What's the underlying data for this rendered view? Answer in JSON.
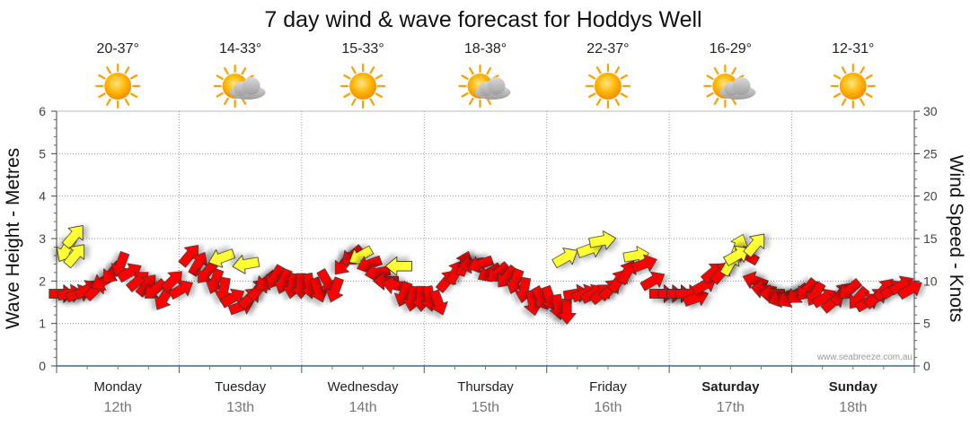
{
  "chart_data": {
    "type": "line",
    "title": "7 day wind & wave forecast for Hoddys Well",
    "ylabel_left": "Wave Height - Metres",
    "ylabel_right": "Wind Speed - Knots",
    "left_axis": {
      "min": 0,
      "max": 6,
      "ticks": [
        "0",
        "1",
        "2",
        "3",
        "4",
        "5",
        "6"
      ]
    },
    "right_axis": {
      "min": 0,
      "max": 30,
      "ticks": [
        "0",
        "5",
        "10",
        "15",
        "20",
        "25",
        "30"
      ]
    },
    "grid": true,
    "days": [
      {
        "day": "Monday",
        "date": "12th",
        "temp": "20-37°",
        "icon": "sun-icon",
        "bold": false
      },
      {
        "day": "Tuesday",
        "date": "13th",
        "temp": "14-33°",
        "icon": "sun-cloud-icon",
        "bold": false
      },
      {
        "day": "Wednesday",
        "date": "14th",
        "temp": "15-33°",
        "icon": "sun-icon",
        "bold": false
      },
      {
        "day": "Thursday",
        "date": "15th",
        "temp": "18-38°",
        "icon": "sun-cloud-icon",
        "bold": false
      },
      {
        "day": "Friday",
        "date": "16th",
        "temp": "22-37°",
        "icon": "sun-icon",
        "bold": false
      },
      {
        "day": "Saturday",
        "date": "17th",
        "temp": "16-29°",
        "icon": "sun-cloud-icon",
        "bold": true
      },
      {
        "day": "Sunday",
        "date": "18th",
        "temp": "12-31°",
        "icon": "sun-icon",
        "bold": true
      }
    ],
    "wind_speed_knots": [
      8.5,
      8.5,
      8.5,
      9,
      9,
      10,
      11,
      12,
      11,
      10,
      9.5,
      9,
      8,
      10,
      9,
      13,
      12,
      11,
      10,
      9,
      8,
      7,
      8,
      9,
      10,
      10.5,
      10,
      9.5,
      9.5,
      9.5,
      9,
      10,
      9,
      12,
      13,
      13,
      12,
      11,
      10,
      9.5,
      8.5,
      8,
      8,
      8,
      7.5,
      10,
      11,
      12,
      12,
      12,
      11,
      11,
      10.5,
      10,
      9,
      7.5,
      8,
      8,
      7,
      6.5,
      8.5,
      8.5,
      8.5,
      8.5,
      9,
      10,
      11,
      13,
      12,
      10,
      8.5,
      8.5,
      8.5,
      8.5,
      8,
      9.5,
      11,
      11,
      12,
      14,
      13,
      10,
      9,
      8.5,
      8,
      8,
      8.5,
      9,
      8.5,
      8,
      7.5,
      8.5,
      9,
      8,
      7.5,
      8,
      9,
      9,
      9.5,
      9
    ],
    "wind_colors": [
      "red",
      "red",
      "red",
      "red",
      "red",
      "red",
      "red",
      "red",
      "red",
      "red",
      "red",
      "red",
      "red",
      "red",
      "red",
      "red",
      "red",
      "red",
      "red",
      "red",
      "red",
      "red",
      "red",
      "red",
      "red",
      "red",
      "red",
      "red",
      "red",
      "red",
      "red",
      "red",
      "red",
      "red",
      "red",
      "yellow",
      "red",
      "red",
      "red",
      "red",
      "red",
      "red",
      "red",
      "red",
      "red",
      "red",
      "red",
      "red",
      "red",
      "red",
      "red",
      "red",
      "red",
      "red",
      "red",
      "red",
      "red",
      "red",
      "red",
      "red",
      "red",
      "red",
      "red",
      "red",
      "red",
      "red",
      "red",
      "yellow",
      "red",
      "red",
      "red",
      "red",
      "red",
      "red",
      "red",
      "red",
      "red",
      "red",
      "yellow",
      "yellow",
      "red",
      "red",
      "red",
      "red",
      "red",
      "red",
      "red",
      "red",
      "red",
      "red",
      "red",
      "red",
      "red",
      "red",
      "red",
      "red",
      "red",
      "red",
      "red",
      "red"
    ],
    "wind_direction_deg": [
      90,
      80,
      70,
      60,
      45,
      240,
      220,
      200,
      60,
      50,
      40,
      230,
      210,
      45,
      60,
      40,
      30,
      220,
      200,
      190,
      60,
      70,
      45,
      40,
      230,
      210,
      200,
      190,
      180,
      170,
      160,
      150,
      200,
      220,
      230,
      240,
      250,
      260,
      270,
      280,
      200,
      190,
      180,
      170,
      160,
      40,
      30,
      20,
      260,
      250,
      240,
      230,
      220,
      200,
      190,
      170,
      150,
      160,
      170,
      180,
      80,
      70,
      60,
      50,
      45,
      35,
      30,
      80,
      70,
      60,
      90,
      90,
      90,
      90,
      70,
      60,
      50,
      40,
      30,
      20,
      300,
      290,
      280,
      270,
      250,
      240,
      230,
      220,
      210,
      60,
      50,
      40,
      230,
      220,
      60,
      50,
      40,
      60,
      60,
      60
    ],
    "swell_points": [
      {
        "t": 0.08,
        "wave_m": 2.75,
        "color": "yellow",
        "dir_deg": 210
      },
      {
        "t": 0.14,
        "wave_m": 3.05,
        "color": "yellow",
        "dir_deg": 40
      },
      {
        "t": 0.15,
        "wave_m": 2.6,
        "color": "yellow",
        "dir_deg": 40
      },
      {
        "t": 1.35,
        "wave_m": 2.55,
        "color": "yellow",
        "dir_deg": 250
      },
      {
        "t": 1.55,
        "wave_m": 2.4,
        "color": "yellow",
        "dir_deg": 260
      },
      {
        "t": 2.8,
        "wave_m": 2.35,
        "color": "yellow",
        "dir_deg": 270
      },
      {
        "t": 4.15,
        "wave_m": 2.55,
        "color": "yellow",
        "dir_deg": 60
      },
      {
        "t": 4.35,
        "wave_m": 2.75,
        "color": "yellow",
        "dir_deg": 70
      },
      {
        "t": 4.45,
        "wave_m": 2.95,
        "color": "yellow",
        "dir_deg": 80
      },
      {
        "t": 5.55,
        "wave_m": 2.6,
        "color": "yellow",
        "dir_deg": 60
      },
      {
        "t": 5.7,
        "wave_m": 2.85,
        "color": "yellow",
        "dir_deg": 40
      }
    ],
    "colors": {
      "red": "#ff0000",
      "yellow": "#ffff33",
      "outline": "#333333",
      "grid": "#9a9a9a"
    }
  },
  "credit": "www.seabreeze.com.au"
}
